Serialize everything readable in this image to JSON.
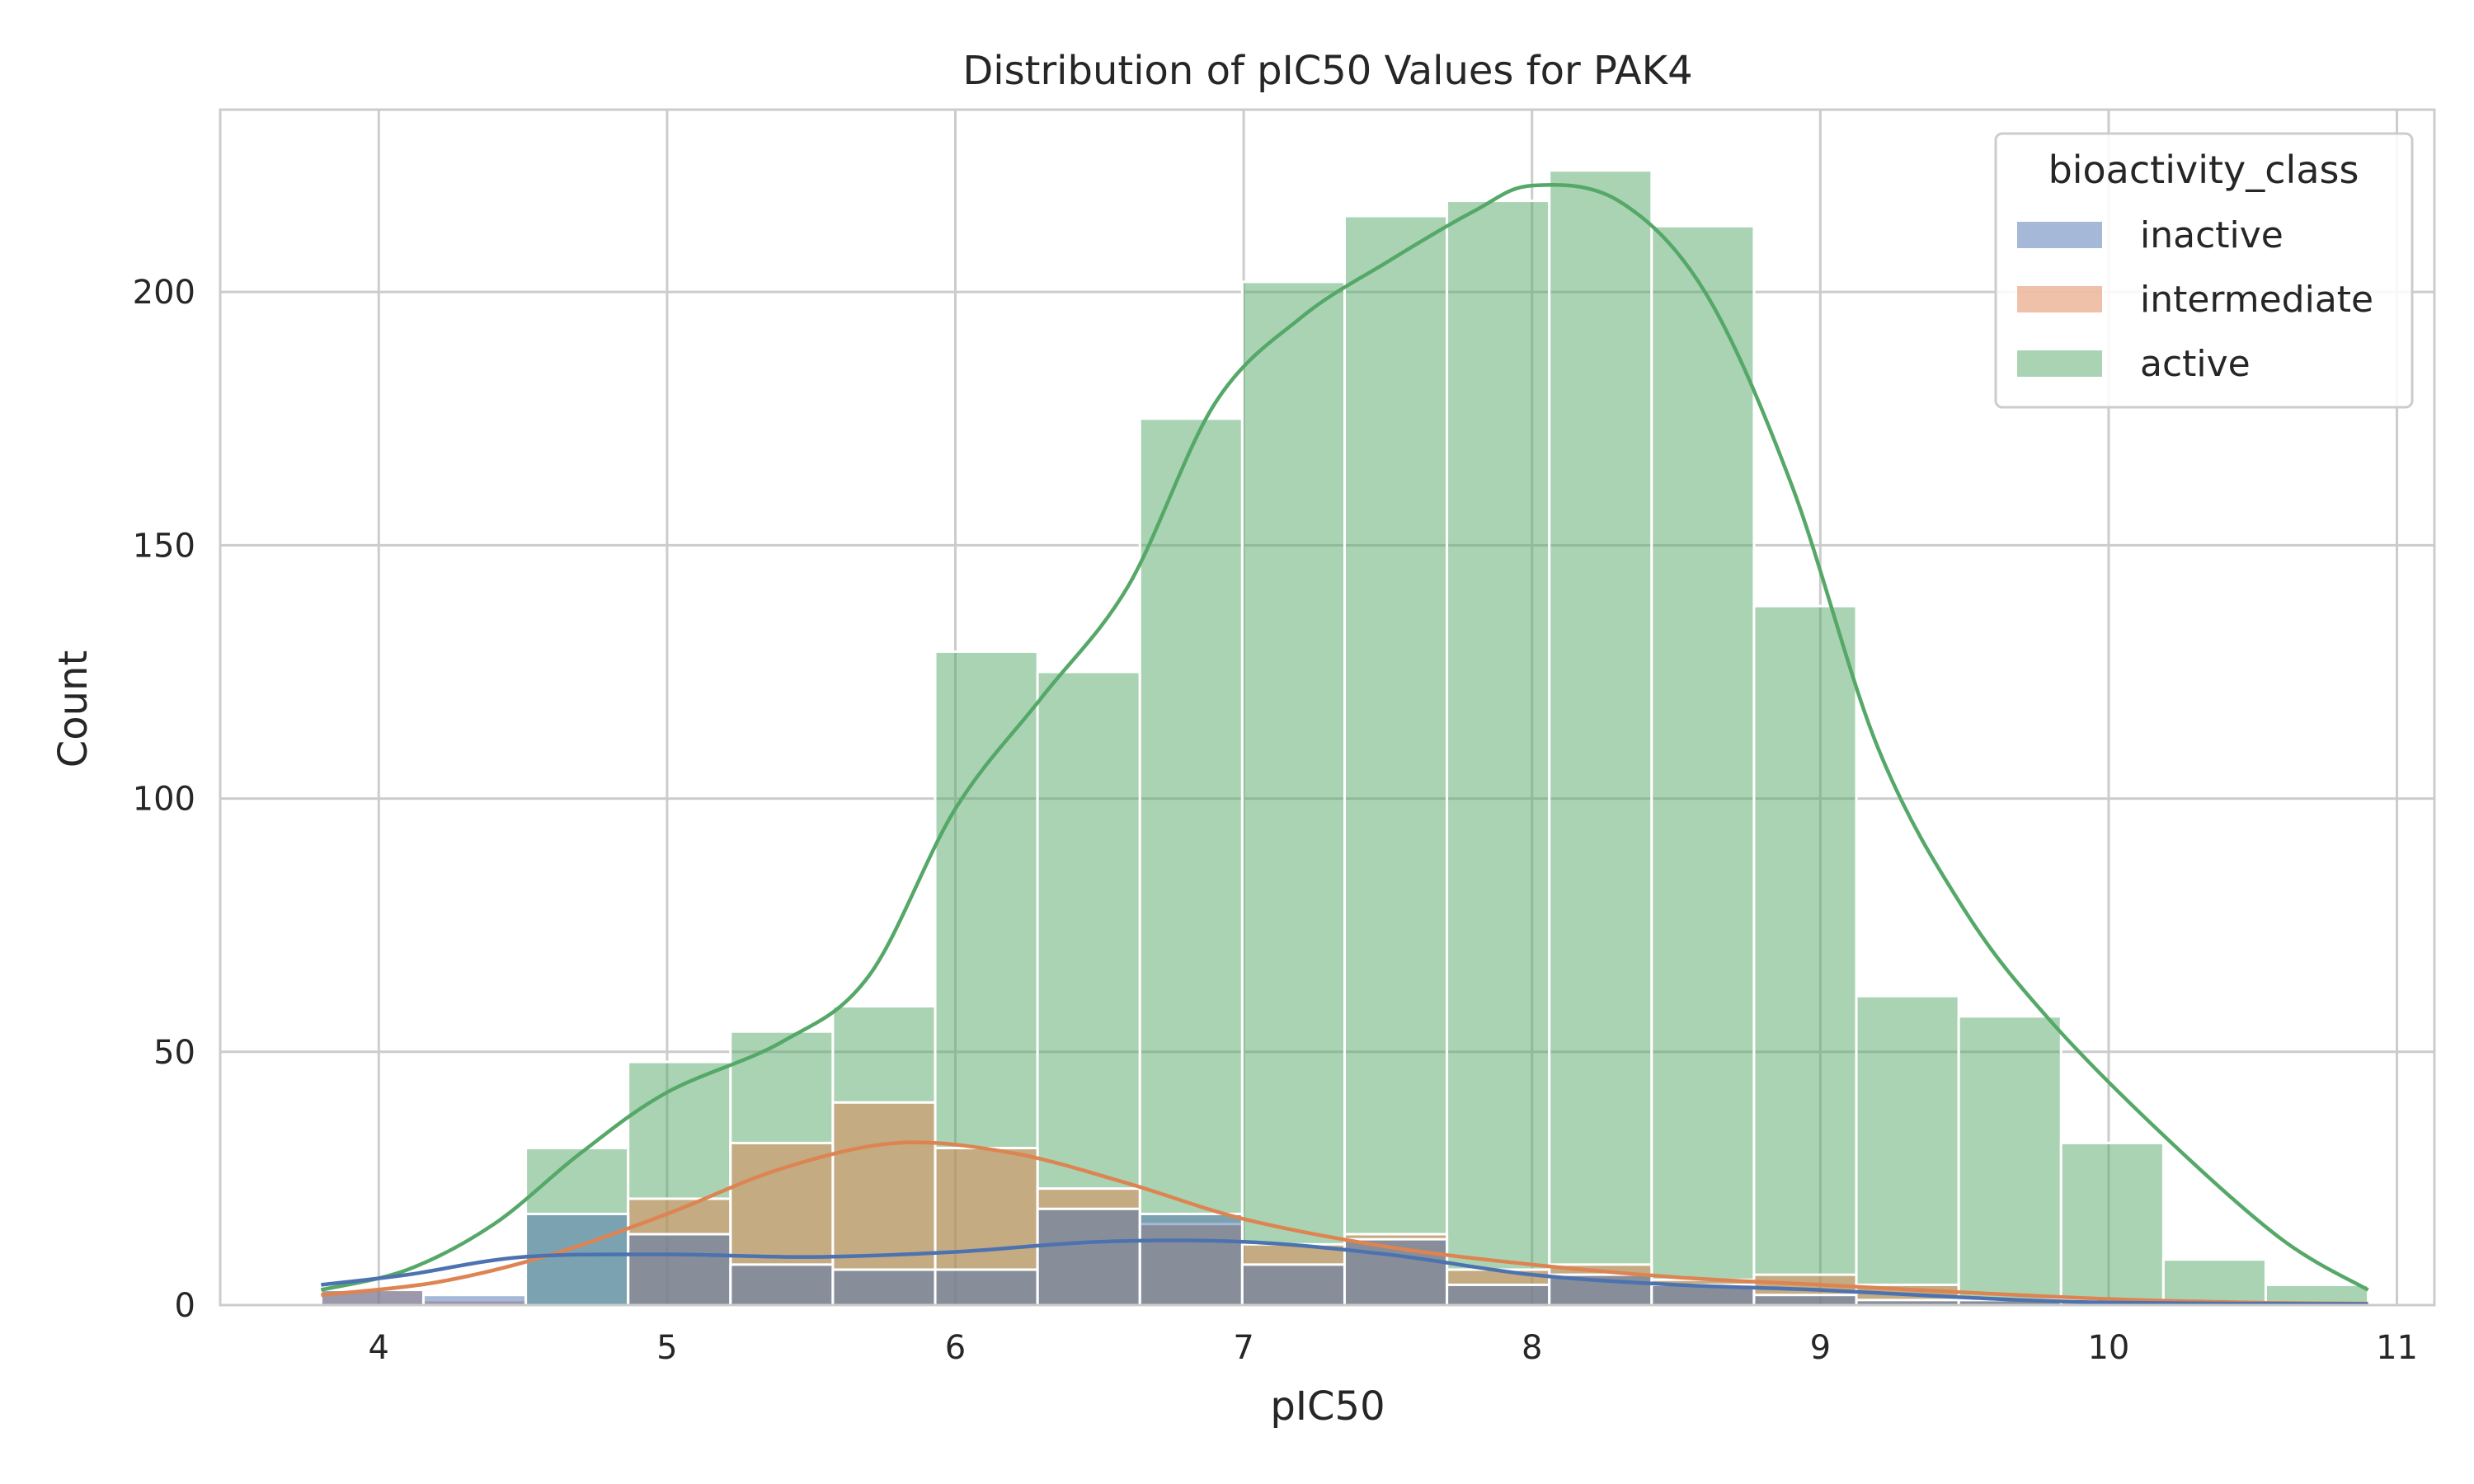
{
  "chart_data": {
    "type": "histogram",
    "title": "Distribution of pIC50 Values for PAK4",
    "xlabel": "pIC50",
    "ylabel": "Count",
    "xlim": [
      3.45,
      11.13
    ],
    "ylim": [
      0,
      236
    ],
    "xticks": [
      4,
      5,
      6,
      7,
      8,
      9,
      10,
      11
    ],
    "yticks": [
      0,
      50,
      100,
      150,
      200
    ],
    "grid": true,
    "legend": {
      "title": "bioactivity_class",
      "position": "top-right"
    },
    "bin_edges": [
      3.8,
      4.155,
      4.51,
      4.865,
      5.22,
      5.575,
      5.93,
      6.285,
      6.64,
      6.995,
      7.35,
      7.705,
      8.06,
      8.415,
      8.77,
      9.125,
      9.48,
      9.835,
      10.19,
      10.545,
      10.9
    ],
    "series": [
      {
        "name": "inactive",
        "color": "#4c72b0",
        "counts": [
          3,
          2,
          18,
          14,
          8,
          7,
          7,
          19,
          18,
          8,
          13,
          4,
          6,
          4,
          2,
          1,
          1,
          0,
          0,
          0
        ],
        "kde": [
          [
            3.8,
            4
          ],
          [
            4.1,
            6
          ],
          [
            4.5,
            9.5
          ],
          [
            5.0,
            10
          ],
          [
            5.5,
            9.5
          ],
          [
            6.0,
            10.5
          ],
          [
            6.5,
            12.5
          ],
          [
            7.0,
            12.5
          ],
          [
            7.5,
            10
          ],
          [
            8.0,
            6
          ],
          [
            8.5,
            4
          ],
          [
            9.0,
            3
          ],
          [
            9.5,
            1.5
          ],
          [
            10.0,
            0.5
          ],
          [
            10.9,
            0.2
          ]
        ]
      },
      {
        "name": "intermediate",
        "color": "#dd8452",
        "counts": [
          3,
          1,
          0,
          21,
          32,
          40,
          31,
          23,
          16,
          12,
          14,
          7,
          8,
          5,
          6,
          4,
          1,
          1,
          0,
          0
        ],
        "kde": [
          [
            3.8,
            2
          ],
          [
            4.2,
            4.5
          ],
          [
            4.6,
            10
          ],
          [
            5.0,
            18
          ],
          [
            5.4,
            27
          ],
          [
            5.8,
            32
          ],
          [
            6.2,
            30
          ],
          [
            6.6,
            24
          ],
          [
            7.0,
            17
          ],
          [
            7.5,
            11.5
          ],
          [
            8.0,
            8
          ],
          [
            8.5,
            5.5
          ],
          [
            9.0,
            4
          ],
          [
            9.5,
            2.5
          ],
          [
            10.0,
            1.2
          ],
          [
            10.5,
            0.5
          ],
          [
            10.9,
            0.3
          ]
        ]
      },
      {
        "name": "active",
        "color": "#55a868",
        "counts": [
          0,
          0,
          31,
          48,
          54,
          59,
          129,
          125,
          175,
          202,
          215,
          218,
          224,
          213,
          138,
          61,
          57,
          32,
          9,
          4
        ],
        "kde": [
          [
            3.8,
            3
          ],
          [
            4.1,
            7
          ],
          [
            4.4,
            16
          ],
          [
            4.7,
            30
          ],
          [
            5.0,
            42
          ],
          [
            5.4,
            52
          ],
          [
            5.7,
            65
          ],
          [
            6.0,
            98
          ],
          [
            6.3,
            120
          ],
          [
            6.6,
            142
          ],
          [
            6.9,
            178
          ],
          [
            7.2,
            195
          ],
          [
            7.5,
            206
          ],
          [
            7.8,
            216
          ],
          [
            8.0,
            221
          ],
          [
            8.3,
            218
          ],
          [
            8.6,
            200
          ],
          [
            8.9,
            162
          ],
          [
            9.2,
            110
          ],
          [
            9.5,
            78
          ],
          [
            9.8,
            56
          ],
          [
            10.2,
            33
          ],
          [
            10.6,
            13
          ],
          [
            10.9,
            3
          ]
        ]
      }
    ]
  }
}
